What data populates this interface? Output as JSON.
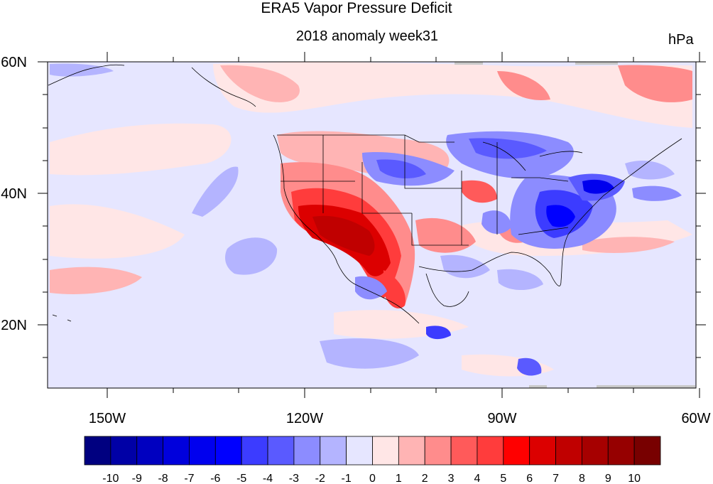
{
  "title": "ERA5 Vapor Pressure Deficit",
  "subtitle": "2018 anomaly week31",
  "units": "hPa",
  "map": {
    "lat_labels": [
      "60N",
      "40N",
      "20N"
    ],
    "lon_labels": [
      "150W",
      "120W",
      "90W",
      "60W"
    ],
    "lat_range": [
      10,
      60
    ],
    "lon_range": [
      -159,
      -61
    ]
  },
  "colorbar": {
    "labels": [
      "-10",
      "-9",
      "-8",
      "-7",
      "-6",
      "-5",
      "-4",
      "-3",
      "-2",
      "-1",
      "0",
      "1",
      "2",
      "3",
      "4",
      "5",
      "6",
      "7",
      "8",
      "9",
      "10"
    ],
    "colors": [
      "#000080",
      "#0000a6",
      "#0000c0",
      "#0000dc",
      "#0000ee",
      "#0000ff",
      "#3c3cff",
      "#5a5aff",
      "#8c8cff",
      "#b4b4ff",
      "#e6e6ff",
      "#ffe6e6",
      "#ffb4b4",
      "#ff8c8c",
      "#ff5a5a",
      "#ff3c3c",
      "#ff0000",
      "#dc0000",
      "#c00000",
      "#a60000",
      "#960000",
      "#780000"
    ]
  }
}
